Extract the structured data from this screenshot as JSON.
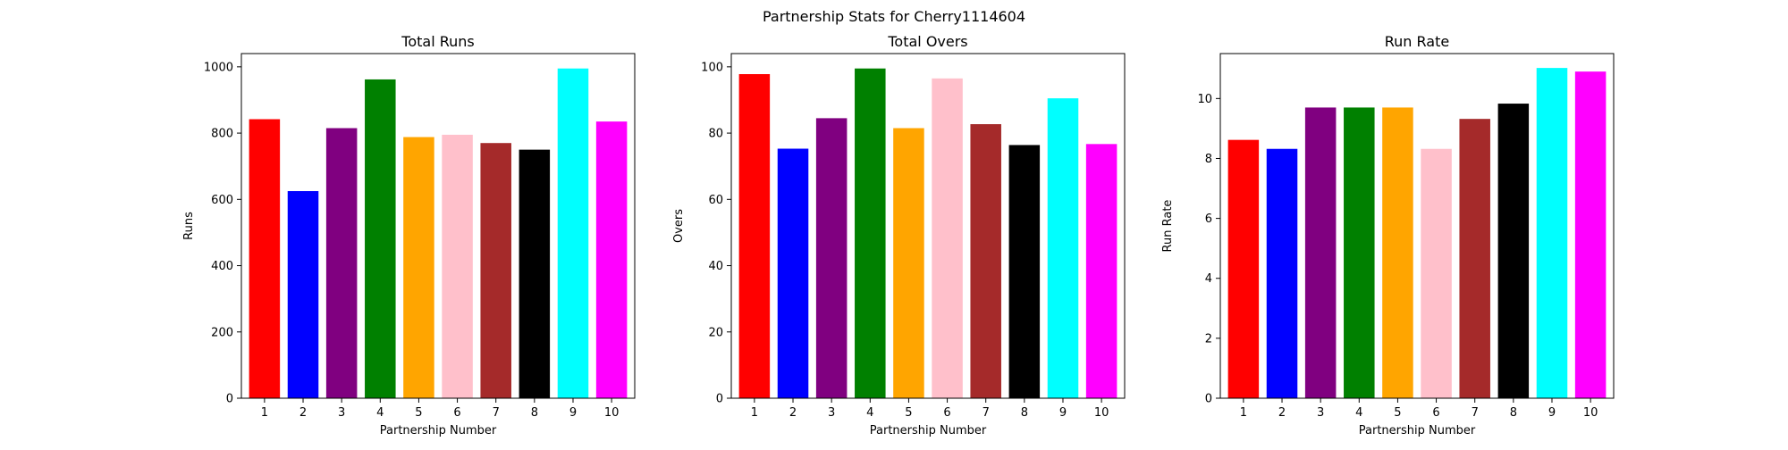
{
  "figure": {
    "suptitle": "Partnership Stats for Cherry1114604"
  },
  "chart_data": [
    {
      "type": "bar",
      "title": "Total Runs",
      "xlabel": "Partnership Number",
      "ylabel": "Runs",
      "categories": [
        "1",
        "2",
        "3",
        "4",
        "5",
        "6",
        "7",
        "8",
        "9",
        "10"
      ],
      "values": [
        842,
        625,
        815,
        962,
        788,
        795,
        770,
        750,
        995,
        835
      ],
      "colors": [
        "#ff0000",
        "#0000ff",
        "#800080",
        "#008000",
        "#ffa500",
        "#ffc0cb",
        "#a52a2a",
        "#000000",
        "#00ffff",
        "#ff00ff"
      ],
      "ylim": [
        0,
        1040
      ],
      "yticks": [
        0,
        200,
        400,
        600,
        800,
        1000
      ]
    },
    {
      "type": "bar",
      "title": "Total Overs",
      "xlabel": "Partnership Number",
      "ylabel": "Overs",
      "categories": [
        "1",
        "2",
        "3",
        "4",
        "5",
        "6",
        "7",
        "8",
        "9",
        "10"
      ],
      "values": [
        97.8,
        75.3,
        84.5,
        99.5,
        81.5,
        96.5,
        82.7,
        76.4,
        90.5,
        76.7
      ],
      "colors": [
        "#ff0000",
        "#0000ff",
        "#800080",
        "#008000",
        "#ffa500",
        "#ffc0cb",
        "#a52a2a",
        "#000000",
        "#00ffff",
        "#ff00ff"
      ],
      "ylim": [
        0,
        104
      ],
      "yticks": [
        0,
        20,
        40,
        60,
        80,
        100
      ]
    },
    {
      "type": "bar",
      "title": "Run Rate",
      "xlabel": "Partnership Number",
      "ylabel": "Run Rate",
      "categories": [
        "1",
        "2",
        "3",
        "4",
        "5",
        "6",
        "7",
        "8",
        "9",
        "10"
      ],
      "values": [
        8.62,
        8.32,
        9.7,
        9.7,
        9.7,
        8.32,
        9.32,
        9.83,
        11.02,
        10.9
      ],
      "colors": [
        "#ff0000",
        "#0000ff",
        "#800080",
        "#008000",
        "#ffa500",
        "#ffc0cb",
        "#a52a2a",
        "#000000",
        "#00ffff",
        "#ff00ff"
      ],
      "ylim": [
        0,
        11.5
      ],
      "yticks": [
        0,
        2,
        4,
        6,
        8,
        10
      ]
    }
  ]
}
